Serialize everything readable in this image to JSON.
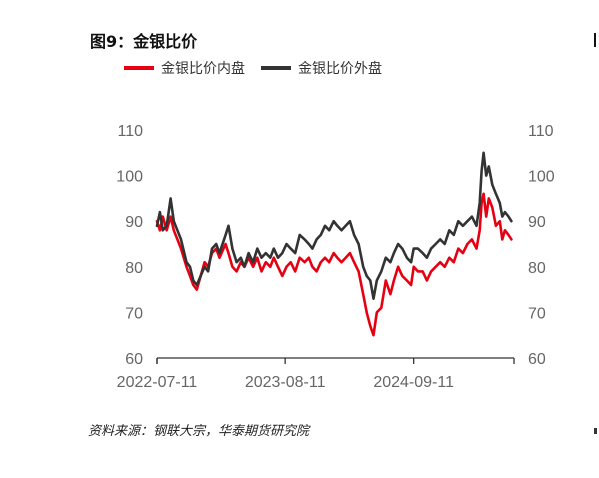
{
  "figure": {
    "title": "图9：金银比价",
    "source": "资料来源：钢联大宗，华泰期货研究院"
  },
  "colors": {
    "domestic": "#e60012",
    "foreign": "#333333",
    "axis": "#333333",
    "tick_text": "#666666"
  },
  "chart_data": {
    "type": "line",
    "title": "",
    "xlabel": "",
    "ylabel": "",
    "ylim": [
      60,
      110
    ],
    "yticks": [
      60,
      70,
      80,
      90,
      100,
      110
    ],
    "ytick_labels_left": [
      "60",
      "70",
      "80",
      "90",
      "100",
      "110"
    ],
    "ytick_labels_right": [
      "60",
      "70",
      "80",
      "90",
      "100",
      "110"
    ],
    "xlim": [
      "2022-07-11",
      "2025-07-18"
    ],
    "xtick_labels": [
      "2022-07-11",
      "2023-08-11",
      "2024-09-11"
    ],
    "legend_position": "top-left",
    "grid": false,
    "series": [
      {
        "name": "金银比价内盘",
        "color": "#e60012",
        "points": [
          [
            "2022-07-11",
            90
          ],
          [
            "2022-07-20",
            88
          ],
          [
            "2022-07-29",
            91
          ],
          [
            "2022-08-10",
            88
          ],
          [
            "2022-08-22",
            91
          ],
          [
            "2022-09-01",
            88
          ],
          [
            "2022-09-12",
            86
          ],
          [
            "2022-09-23",
            84
          ],
          [
            "2022-10-10",
            80
          ],
          [
            "2022-10-21",
            78
          ],
          [
            "2022-10-31",
            76
          ],
          [
            "2022-11-11",
            75
          ],
          [
            "2022-11-23",
            78
          ],
          [
            "2022-12-05",
            81
          ],
          [
            "2022-12-16",
            80
          ],
          [
            "2022-12-28",
            83
          ],
          [
            "2023-01-10",
            84
          ],
          [
            "2023-01-20",
            82
          ],
          [
            "2023-02-08",
            85
          ],
          [
            "2023-02-17",
            83
          ],
          [
            "2023-03-01",
            80
          ],
          [
            "2023-03-14",
            79
          ],
          [
            "2023-03-27",
            81
          ],
          [
            "2023-04-07",
            80
          ],
          [
            "2023-04-20",
            82
          ],
          [
            "2023-05-04",
            80
          ],
          [
            "2023-05-17",
            82
          ],
          [
            "2023-05-30",
            79
          ],
          [
            "2023-06-12",
            81
          ],
          [
            "2023-06-26",
            80
          ],
          [
            "2023-07-07",
            82
          ],
          [
            "2023-07-20",
            80
          ],
          [
            "2023-08-02",
            78
          ],
          [
            "2023-08-15",
            80
          ],
          [
            "2023-08-28",
            81
          ],
          [
            "2023-09-11",
            79
          ],
          [
            "2023-09-25",
            82
          ],
          [
            "2023-10-10",
            81
          ],
          [
            "2023-10-23",
            82
          ],
          [
            "2023-11-03",
            80
          ],
          [
            "2023-11-16",
            79
          ],
          [
            "2023-11-29",
            81
          ],
          [
            "2023-12-12",
            82
          ],
          [
            "2023-12-25",
            81
          ],
          [
            "2024-01-08",
            83
          ],
          [
            "2024-01-19",
            82
          ],
          [
            "2024-02-01",
            81
          ],
          [
            "2024-02-14",
            82
          ],
          [
            "2024-02-27",
            83
          ],
          [
            "2024-03-11",
            81
          ],
          [
            "2024-03-25",
            79
          ],
          [
            "2024-04-08",
            74
          ],
          [
            "2024-04-19",
            70
          ],
          [
            "2024-04-30",
            67
          ],
          [
            "2024-05-10",
            65
          ],
          [
            "2024-05-20",
            70
          ],
          [
            "2024-06-03",
            71
          ],
          [
            "2024-06-17",
            77
          ],
          [
            "2024-07-01",
            74
          ],
          [
            "2024-07-12",
            77
          ],
          [
            "2024-07-25",
            80
          ],
          [
            "2024-08-07",
            78
          ],
          [
            "2024-08-21",
            77
          ],
          [
            "2024-09-03",
            76
          ],
          [
            "2024-09-11",
            80
          ],
          [
            "2024-09-24",
            79
          ],
          [
            "2024-10-09",
            79
          ],
          [
            "2024-10-22",
            77
          ],
          [
            "2024-11-04",
            79
          ],
          [
            "2024-11-18",
            80
          ],
          [
            "2024-12-02",
            81
          ],
          [
            "2024-12-16",
            80
          ],
          [
            "2024-12-30",
            82
          ],
          [
            "2025-01-13",
            81
          ],
          [
            "2025-01-27",
            84
          ],
          [
            "2025-02-10",
            83
          ],
          [
            "2025-02-24",
            85
          ],
          [
            "2025-03-10",
            86
          ],
          [
            "2025-03-24",
            84
          ],
          [
            "2025-04-03",
            88
          ],
          [
            "2025-04-09",
            94
          ],
          [
            "2025-04-15",
            96
          ],
          [
            "2025-04-23",
            91
          ],
          [
            "2025-05-01",
            95
          ],
          [
            "2025-05-12",
            93
          ],
          [
            "2025-05-23",
            89
          ],
          [
            "2025-06-04",
            90
          ],
          [
            "2025-06-12",
            86
          ],
          [
            "2025-06-20",
            88
          ],
          [
            "2025-07-01",
            87
          ],
          [
            "2025-07-10",
            86
          ]
        ]
      },
      {
        "name": "金银比价外盘",
        "color": "#333333",
        "points": [
          [
            "2022-07-11",
            89
          ],
          [
            "2022-07-20",
            92
          ],
          [
            "2022-07-29",
            88
          ],
          [
            "2022-08-10",
            89
          ],
          [
            "2022-08-22",
            95
          ],
          [
            "2022-09-01",
            90
          ],
          [
            "2022-09-12",
            88
          ],
          [
            "2022-09-23",
            86
          ],
          [
            "2022-10-10",
            81
          ],
          [
            "2022-10-21",
            80
          ],
          [
            "2022-10-31",
            77
          ],
          [
            "2022-11-11",
            76
          ],
          [
            "2022-11-23",
            78
          ],
          [
            "2022-12-05",
            80
          ],
          [
            "2022-12-16",
            79
          ],
          [
            "2022-12-28",
            84
          ],
          [
            "2023-01-10",
            85
          ],
          [
            "2023-01-20",
            83
          ],
          [
            "2023-02-08",
            87
          ],
          [
            "2023-02-17",
            89
          ],
          [
            "2023-03-01",
            84
          ],
          [
            "2023-03-14",
            81
          ],
          [
            "2023-03-27",
            82
          ],
          [
            "2023-04-07",
            80
          ],
          [
            "2023-04-20",
            83
          ],
          [
            "2023-05-04",
            81
          ],
          [
            "2023-05-17",
            84
          ],
          [
            "2023-05-30",
            82
          ],
          [
            "2023-06-12",
            83
          ],
          [
            "2023-06-26",
            82
          ],
          [
            "2023-07-07",
            84
          ],
          [
            "2023-07-20",
            82
          ],
          [
            "2023-08-02",
            83
          ],
          [
            "2023-08-15",
            85
          ],
          [
            "2023-08-28",
            84
          ],
          [
            "2023-09-11",
            83
          ],
          [
            "2023-09-25",
            87
          ],
          [
            "2023-10-10",
            86
          ],
          [
            "2023-10-23",
            85
          ],
          [
            "2023-11-03",
            84
          ],
          [
            "2023-11-16",
            86
          ],
          [
            "2023-11-29",
            87
          ],
          [
            "2023-12-12",
            89
          ],
          [
            "2023-12-25",
            88
          ],
          [
            "2024-01-08",
            90
          ],
          [
            "2024-01-19",
            89
          ],
          [
            "2024-02-01",
            88
          ],
          [
            "2024-02-14",
            89
          ],
          [
            "2024-02-27",
            90
          ],
          [
            "2024-03-11",
            87
          ],
          [
            "2024-03-25",
            85
          ],
          [
            "2024-04-08",
            80
          ],
          [
            "2024-04-19",
            78
          ],
          [
            "2024-04-30",
            77
          ],
          [
            "2024-05-10",
            73
          ],
          [
            "2024-05-20",
            77
          ],
          [
            "2024-06-03",
            79
          ],
          [
            "2024-06-17",
            82
          ],
          [
            "2024-07-01",
            81
          ],
          [
            "2024-07-12",
            83
          ],
          [
            "2024-07-25",
            85
          ],
          [
            "2024-08-07",
            84
          ],
          [
            "2024-08-21",
            82
          ],
          [
            "2024-09-03",
            81
          ],
          [
            "2024-09-11",
            84
          ],
          [
            "2024-09-24",
            84
          ],
          [
            "2024-10-09",
            83
          ],
          [
            "2024-10-22",
            82
          ],
          [
            "2024-11-04",
            84
          ],
          [
            "2024-11-18",
            85
          ],
          [
            "2024-12-02",
            86
          ],
          [
            "2024-12-16",
            85
          ],
          [
            "2024-12-30",
            88
          ],
          [
            "2025-01-13",
            87
          ],
          [
            "2025-01-27",
            90
          ],
          [
            "2025-02-10",
            89
          ],
          [
            "2025-02-24",
            90
          ],
          [
            "2025-03-10",
            91
          ],
          [
            "2025-03-24",
            89
          ],
          [
            "2025-04-03",
            94
          ],
          [
            "2025-04-09",
            101
          ],
          [
            "2025-04-15",
            105
          ],
          [
            "2025-04-23",
            100
          ],
          [
            "2025-05-01",
            102
          ],
          [
            "2025-05-12",
            98
          ],
          [
            "2025-05-23",
            96
          ],
          [
            "2025-06-04",
            94
          ],
          [
            "2025-06-12",
            91
          ],
          [
            "2025-06-20",
            92
          ],
          [
            "2025-07-01",
            91
          ],
          [
            "2025-07-10",
            90
          ]
        ]
      }
    ]
  }
}
